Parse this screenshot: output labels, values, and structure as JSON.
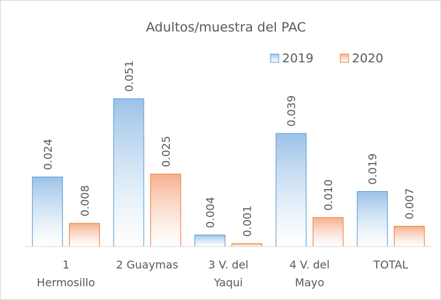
{
  "chart_data": {
    "type": "bar",
    "title": "Adultos/muestra del PAC",
    "categories": [
      "1\nHermosillo",
      "2 Guaymas",
      "3 V. del\nYaqui",
      "4 V. del\nMayo",
      "TOTAL"
    ],
    "series": [
      {
        "name": "2019",
        "color": "#9cc2e8",
        "border": "#5b9bd5",
        "values": [
          0.024,
          0.051,
          0.004,
          0.039,
          0.019
        ],
        "value_labels": [
          "0.024",
          "0.051",
          "0.004",
          "0.039",
          "0.019"
        ]
      },
      {
        "name": "2020",
        "color": "#f6b08e",
        "border": "#ed7d31",
        "values": [
          0.008,
          0.025,
          0.001,
          0.01,
          0.007
        ],
        "value_labels": [
          "0.008",
          "0.025",
          "0.001",
          "0.010",
          "0.007"
        ]
      }
    ],
    "ylim": [
      0,
      0.06
    ],
    "legend": "top-right"
  }
}
